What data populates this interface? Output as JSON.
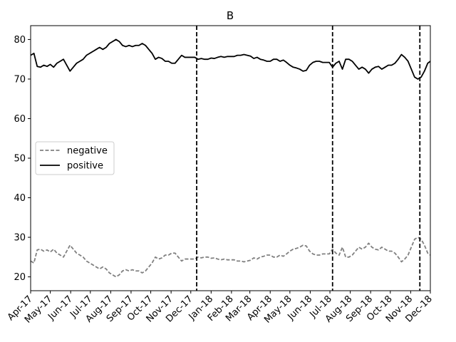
{
  "chart_data": {
    "type": "line",
    "title": "B",
    "xlabel": "",
    "ylabel": "",
    "ylim": [
      16.5,
      83.5
    ],
    "x_range": [
      "2017-04-01",
      "2018-12-01"
    ],
    "y_ticks": [
      20,
      30,
      40,
      50,
      60,
      70,
      80
    ],
    "x_ticks": [
      {
        "date": "2017-04-01",
        "label": "Apr-17"
      },
      {
        "date": "2017-05-01",
        "label": "May-17"
      },
      {
        "date": "2017-06-01",
        "label": "Jun-17"
      },
      {
        "date": "2017-07-01",
        "label": "Jul-17"
      },
      {
        "date": "2017-08-01",
        "label": "Aug-17"
      },
      {
        "date": "2017-09-01",
        "label": "Sep-17"
      },
      {
        "date": "2017-10-01",
        "label": "Oct-17"
      },
      {
        "date": "2017-11-01",
        "label": "Nov-17"
      },
      {
        "date": "2017-12-01",
        "label": "Dec-17"
      },
      {
        "date": "2018-01-01",
        "label": "Jan-18"
      },
      {
        "date": "2018-02-01",
        "label": "Feb-18"
      },
      {
        "date": "2018-03-01",
        "label": "Mar-18"
      },
      {
        "date": "2018-04-01",
        "label": "Apr-18"
      },
      {
        "date": "2018-05-01",
        "label": "May-18"
      },
      {
        "date": "2018-06-01",
        "label": "Jun-18"
      },
      {
        "date": "2018-07-01",
        "label": "Jul-18"
      },
      {
        "date": "2018-08-01",
        "label": "Aug-18"
      },
      {
        "date": "2018-09-01",
        "label": "Sep-18"
      },
      {
        "date": "2018-10-01",
        "label": "Oct-18"
      },
      {
        "date": "2018-11-01",
        "label": "Nov-18"
      },
      {
        "date": "2018-12-01",
        "label": "Dec-18"
      }
    ],
    "vlines": [
      "2017-12-10",
      "2018-07-05",
      "2018-11-15"
    ],
    "legend": {
      "placement": "center-left"
    },
    "series": [
      {
        "name": "negative",
        "color": "#808080",
        "style": "dashed",
        "points": [
          [
            "2017-04-01",
            24
          ],
          [
            "2017-04-06",
            23.5
          ],
          [
            "2017-04-11",
            26.8
          ],
          [
            "2017-04-16",
            27
          ],
          [
            "2017-04-21",
            26.5
          ],
          [
            "2017-04-26",
            26.8
          ],
          [
            "2017-05-01",
            26.3
          ],
          [
            "2017-05-06",
            27
          ],
          [
            "2017-05-11",
            26
          ],
          [
            "2017-05-16",
            25.5
          ],
          [
            "2017-05-21",
            25
          ],
          [
            "2017-05-26",
            26.5
          ],
          [
            "2017-05-31",
            28
          ],
          [
            "2017-06-05",
            27
          ],
          [
            "2017-06-10",
            26
          ],
          [
            "2017-06-15",
            25.5
          ],
          [
            "2017-06-20",
            25
          ],
          [
            "2017-06-25",
            24
          ],
          [
            "2017-06-30",
            23.5
          ],
          [
            "2017-07-05",
            23
          ],
          [
            "2017-07-10",
            22.5
          ],
          [
            "2017-07-15",
            22
          ],
          [
            "2017-07-20",
            22.5
          ],
          [
            "2017-07-25",
            22
          ],
          [
            "2017-07-30",
            21
          ],
          [
            "2017-08-04",
            20.5
          ],
          [
            "2017-08-09",
            20
          ],
          [
            "2017-08-14",
            20.5
          ],
          [
            "2017-08-19",
            21.5
          ],
          [
            "2017-08-24",
            21.8
          ],
          [
            "2017-08-29",
            21.5
          ],
          [
            "2017-09-03",
            21.8
          ],
          [
            "2017-09-08",
            21.5
          ],
          [
            "2017-09-13",
            21.5
          ],
          [
            "2017-09-18",
            21
          ],
          [
            "2017-09-23",
            21.5
          ],
          [
            "2017-09-28",
            22.5
          ],
          [
            "2017-10-03",
            23.5
          ],
          [
            "2017-10-08",
            25
          ],
          [
            "2017-10-13",
            24.5
          ],
          [
            "2017-10-18",
            24.8
          ],
          [
            "2017-10-23",
            25.5
          ],
          [
            "2017-10-28",
            25.5
          ],
          [
            "2017-11-02",
            26
          ],
          [
            "2017-11-07",
            26
          ],
          [
            "2017-11-12",
            25
          ],
          [
            "2017-11-17",
            24
          ],
          [
            "2017-11-22",
            24.5
          ],
          [
            "2017-11-27",
            24.5
          ],
          [
            "2017-12-02",
            24.5
          ],
          [
            "2017-12-07",
            24.5
          ],
          [
            "2017-12-12",
            25
          ],
          [
            "2017-12-17",
            24.8
          ],
          [
            "2017-12-22",
            25
          ],
          [
            "2017-12-27",
            25
          ],
          [
            "2018-01-01",
            24.7
          ],
          [
            "2018-01-06",
            24.8
          ],
          [
            "2018-01-11",
            24.5
          ],
          [
            "2018-01-16",
            24.3
          ],
          [
            "2018-01-21",
            24.5
          ],
          [
            "2018-01-26",
            24.3
          ],
          [
            "2018-01-31",
            24.3
          ],
          [
            "2018-02-05",
            24.3
          ],
          [
            "2018-02-10",
            24
          ],
          [
            "2018-02-15",
            24
          ],
          [
            "2018-02-20",
            23.8
          ],
          [
            "2018-02-25",
            24
          ],
          [
            "2018-03-02",
            24.2
          ],
          [
            "2018-03-07",
            24.8
          ],
          [
            "2018-03-12",
            24.5
          ],
          [
            "2018-03-17",
            25
          ],
          [
            "2018-03-22",
            25.2
          ],
          [
            "2018-03-27",
            25.5
          ],
          [
            "2018-04-01",
            25.5
          ],
          [
            "2018-04-06",
            25
          ],
          [
            "2018-04-11",
            25
          ],
          [
            "2018-04-16",
            25.5
          ],
          [
            "2018-04-21",
            25.2
          ],
          [
            "2018-04-26",
            25.8
          ],
          [
            "2018-05-01",
            26.5
          ],
          [
            "2018-05-06",
            27
          ],
          [
            "2018-05-11",
            27.2
          ],
          [
            "2018-05-16",
            27.5
          ],
          [
            "2018-05-21",
            28
          ],
          [
            "2018-05-26",
            27.8
          ],
          [
            "2018-05-31",
            26.5
          ],
          [
            "2018-06-05",
            25.8
          ],
          [
            "2018-06-10",
            25.5
          ],
          [
            "2018-06-15",
            25.5
          ],
          [
            "2018-06-20",
            25.8
          ],
          [
            "2018-06-25",
            25.8
          ],
          [
            "2018-06-30",
            25.8
          ],
          [
            "2018-07-05",
            27
          ],
          [
            "2018-07-10",
            26
          ],
          [
            "2018-07-15",
            25.5
          ],
          [
            "2018-07-20",
            27.5
          ],
          [
            "2018-07-25",
            25
          ],
          [
            "2018-07-30",
            25
          ],
          [
            "2018-08-04",
            25.5
          ],
          [
            "2018-08-09",
            26.5
          ],
          [
            "2018-08-14",
            27.5
          ],
          [
            "2018-08-19",
            27
          ],
          [
            "2018-08-24",
            27.5
          ],
          [
            "2018-08-29",
            28.5
          ],
          [
            "2018-09-03",
            27.5
          ],
          [
            "2018-09-08",
            27
          ],
          [
            "2018-09-13",
            26.8
          ],
          [
            "2018-09-18",
            27.5
          ],
          [
            "2018-09-23",
            27
          ],
          [
            "2018-09-28",
            26.5
          ],
          [
            "2018-10-03",
            26.5
          ],
          [
            "2018-10-08",
            26
          ],
          [
            "2018-10-13",
            25
          ],
          [
            "2018-10-18",
            23.8
          ],
          [
            "2018-10-23",
            24.5
          ],
          [
            "2018-10-28",
            25.5
          ],
          [
            "2018-11-02",
            27.5
          ],
          [
            "2018-11-07",
            29.5
          ],
          [
            "2018-11-12",
            30
          ],
          [
            "2018-11-17",
            29.5
          ],
          [
            "2018-11-22",
            28
          ],
          [
            "2018-11-27",
            26
          ],
          [
            "2018-12-01",
            25.5
          ]
        ]
      },
      {
        "name": "positive",
        "color": "#000000",
        "style": "solid",
        "points": [
          [
            "2017-04-01",
            76
          ],
          [
            "2017-04-06",
            76.5
          ],
          [
            "2017-04-11",
            73.2
          ],
          [
            "2017-04-16",
            73
          ],
          [
            "2017-04-21",
            73.5
          ],
          [
            "2017-04-26",
            73.2
          ],
          [
            "2017-05-01",
            73.7
          ],
          [
            "2017-05-06",
            73
          ],
          [
            "2017-05-11",
            74
          ],
          [
            "2017-05-16",
            74.5
          ],
          [
            "2017-05-21",
            75
          ],
          [
            "2017-05-26",
            73.5
          ],
          [
            "2017-05-31",
            72
          ],
          [
            "2017-06-05",
            73
          ],
          [
            "2017-06-10",
            74
          ],
          [
            "2017-06-15",
            74.5
          ],
          [
            "2017-06-20",
            75
          ],
          [
            "2017-06-25",
            76
          ],
          [
            "2017-06-30",
            76.5
          ],
          [
            "2017-07-05",
            77
          ],
          [
            "2017-07-10",
            77.5
          ],
          [
            "2017-07-15",
            78
          ],
          [
            "2017-07-20",
            77.5
          ],
          [
            "2017-07-25",
            78
          ],
          [
            "2017-07-30",
            79
          ],
          [
            "2017-08-04",
            79.5
          ],
          [
            "2017-08-09",
            80
          ],
          [
            "2017-08-14",
            79.5
          ],
          [
            "2017-08-19",
            78.5
          ],
          [
            "2017-08-24",
            78.2
          ],
          [
            "2017-08-29",
            78.5
          ],
          [
            "2017-09-03",
            78.2
          ],
          [
            "2017-09-08",
            78.5
          ],
          [
            "2017-09-13",
            78.5
          ],
          [
            "2017-09-18",
            79
          ],
          [
            "2017-09-23",
            78.5
          ],
          [
            "2017-09-28",
            77.5
          ],
          [
            "2017-10-03",
            76.5
          ],
          [
            "2017-10-08",
            75
          ],
          [
            "2017-10-13",
            75.5
          ],
          [
            "2017-10-18",
            75.2
          ],
          [
            "2017-10-23",
            74.5
          ],
          [
            "2017-10-28",
            74.5
          ],
          [
            "2017-11-02",
            74
          ],
          [
            "2017-11-07",
            74
          ],
          [
            "2017-11-12",
            75
          ],
          [
            "2017-11-17",
            76
          ],
          [
            "2017-11-22",
            75.5
          ],
          [
            "2017-11-27",
            75.5
          ],
          [
            "2017-12-02",
            75.5
          ],
          [
            "2017-12-07",
            75.5
          ],
          [
            "2017-12-12",
            75
          ],
          [
            "2017-12-17",
            75.2
          ],
          [
            "2017-12-22",
            75
          ],
          [
            "2017-12-27",
            75
          ],
          [
            "2018-01-01",
            75.3
          ],
          [
            "2018-01-06",
            75.2
          ],
          [
            "2018-01-11",
            75.5
          ],
          [
            "2018-01-16",
            75.7
          ],
          [
            "2018-01-21",
            75.5
          ],
          [
            "2018-01-26",
            75.7
          ],
          [
            "2018-01-31",
            75.7
          ],
          [
            "2018-02-05",
            75.7
          ],
          [
            "2018-02-10",
            76
          ],
          [
            "2018-02-15",
            76
          ],
          [
            "2018-02-20",
            76.2
          ],
          [
            "2018-02-25",
            76
          ],
          [
            "2018-03-02",
            75.8
          ],
          [
            "2018-03-07",
            75.2
          ],
          [
            "2018-03-12",
            75.5
          ],
          [
            "2018-03-17",
            75
          ],
          [
            "2018-03-22",
            74.8
          ],
          [
            "2018-03-27",
            74.5
          ],
          [
            "2018-04-01",
            74.5
          ],
          [
            "2018-04-06",
            75
          ],
          [
            "2018-04-11",
            75
          ],
          [
            "2018-04-16",
            74.5
          ],
          [
            "2018-04-21",
            74.8
          ],
          [
            "2018-04-26",
            74.2
          ],
          [
            "2018-05-01",
            73.5
          ],
          [
            "2018-05-06",
            73
          ],
          [
            "2018-05-11",
            72.8
          ],
          [
            "2018-05-16",
            72.5
          ],
          [
            "2018-05-21",
            72
          ],
          [
            "2018-05-26",
            72.2
          ],
          [
            "2018-05-31",
            73.5
          ],
          [
            "2018-06-05",
            74.2
          ],
          [
            "2018-06-10",
            74.5
          ],
          [
            "2018-06-15",
            74.5
          ],
          [
            "2018-06-20",
            74.2
          ],
          [
            "2018-06-25",
            74.2
          ],
          [
            "2018-06-30",
            74.2
          ],
          [
            "2018-07-05",
            73
          ],
          [
            "2018-07-10",
            74
          ],
          [
            "2018-07-15",
            74.5
          ],
          [
            "2018-07-20",
            72.5
          ],
          [
            "2018-07-25",
            75
          ],
          [
            "2018-07-30",
            75
          ],
          [
            "2018-08-04",
            74.5
          ],
          [
            "2018-08-09",
            73.5
          ],
          [
            "2018-08-14",
            72.5
          ],
          [
            "2018-08-19",
            73
          ],
          [
            "2018-08-24",
            72.5
          ],
          [
            "2018-08-29",
            71.5
          ],
          [
            "2018-09-03",
            72.5
          ],
          [
            "2018-09-08",
            73
          ],
          [
            "2018-09-13",
            73.2
          ],
          [
            "2018-09-18",
            72.5
          ],
          [
            "2018-09-23",
            73
          ],
          [
            "2018-09-28",
            73.5
          ],
          [
            "2018-10-03",
            73.5
          ],
          [
            "2018-10-08",
            74
          ],
          [
            "2018-10-13",
            75
          ],
          [
            "2018-10-18",
            76.2
          ],
          [
            "2018-10-23",
            75.5
          ],
          [
            "2018-10-28",
            74.5
          ],
          [
            "2018-11-02",
            72.5
          ],
          [
            "2018-11-07",
            70.5
          ],
          [
            "2018-11-12",
            70
          ],
          [
            "2018-11-17",
            70.5
          ],
          [
            "2018-11-22",
            72
          ],
          [
            "2018-11-27",
            74
          ],
          [
            "2018-12-01",
            74.5
          ]
        ]
      }
    ]
  }
}
